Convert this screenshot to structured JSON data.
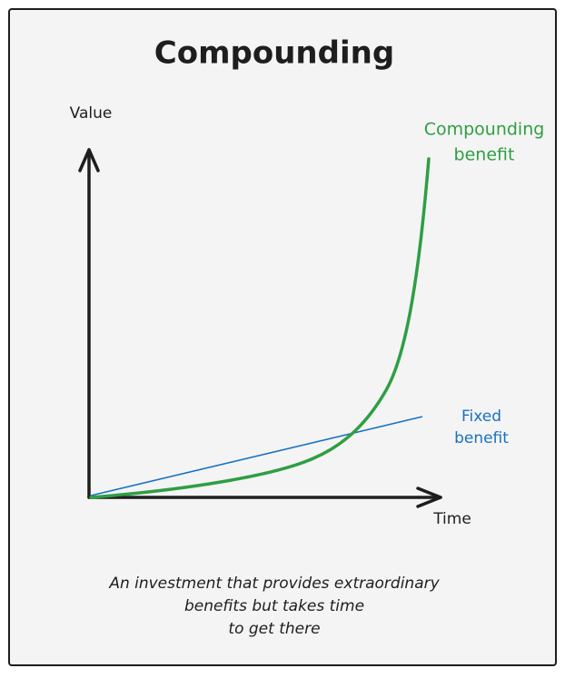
{
  "title": "Compounding",
  "axes": {
    "y_label": "Value",
    "x_label": "Time"
  },
  "curves": [
    {
      "label_lines": [
        "Compounding",
        "benefit"
      ]
    },
    {
      "label_lines": [
        "Fixed",
        "benefit"
      ]
    }
  ],
  "caption": {
    "lines": [
      "An investment that provides extraordinary",
      "benefits but takes time",
      "to get there"
    ]
  }
}
